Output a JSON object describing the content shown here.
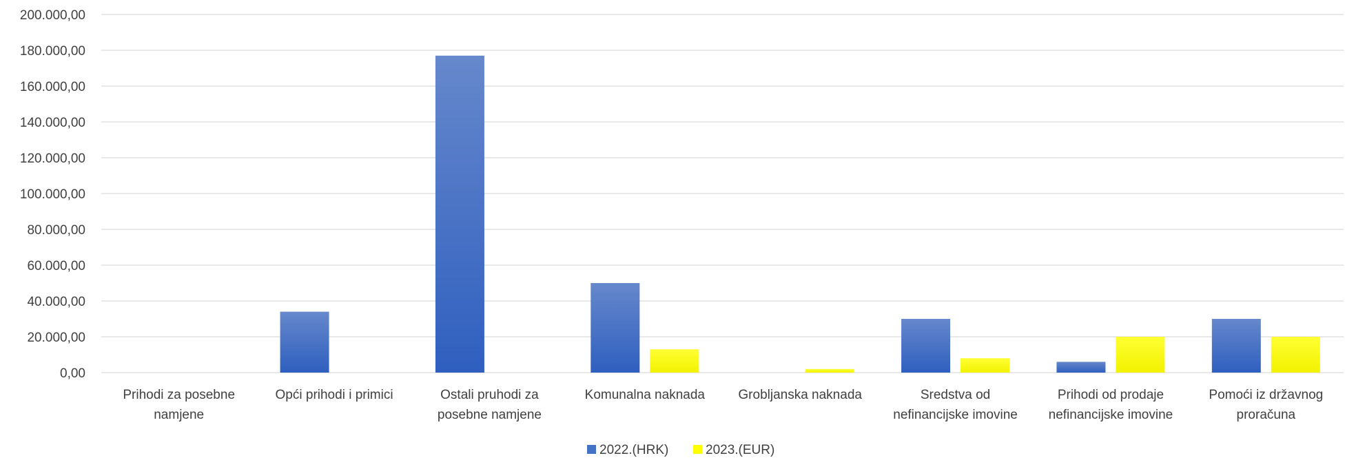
{
  "chart_data": {
    "type": "bar",
    "title": "",
    "xlabel": "",
    "ylabel": "",
    "ylim": [
      0,
      200000
    ],
    "yticks": [
      "0,00",
      "20.000,00",
      "40.000,00",
      "60.000,00",
      "80.000,00",
      "100.000,00",
      "120.000,00",
      "140.000,00",
      "160.000,00",
      "180.000,00",
      "200.000,00"
    ],
    "categories": [
      [
        "Prihodi za posebne",
        "namjene"
      ],
      [
        "Opći prihodi i primici"
      ],
      [
        "Ostali pruhodi za",
        "posebne namjene"
      ],
      [
        "Komunalna naknada"
      ],
      [
        "Grobljanska naknada"
      ],
      [
        "Sredstva od",
        "nefinancijske imovine"
      ],
      [
        "Prihodi od prodaje",
        "nefinancijske imovine"
      ],
      [
        "Pomoći iz državnog",
        "proračuna"
      ]
    ],
    "series": [
      {
        "name": "2022.(HRK)",
        "color": "#4472c4",
        "values": [
          0,
          34000,
          177000,
          50000,
          0,
          30000,
          6000,
          30000
        ]
      },
      {
        "name": "2023.(EUR)",
        "color": "#ffff00",
        "values": [
          0,
          0,
          0,
          13000,
          2000,
          8000,
          20000,
          20000
        ]
      }
    ],
    "grid": true,
    "legend_position": "bottom"
  }
}
